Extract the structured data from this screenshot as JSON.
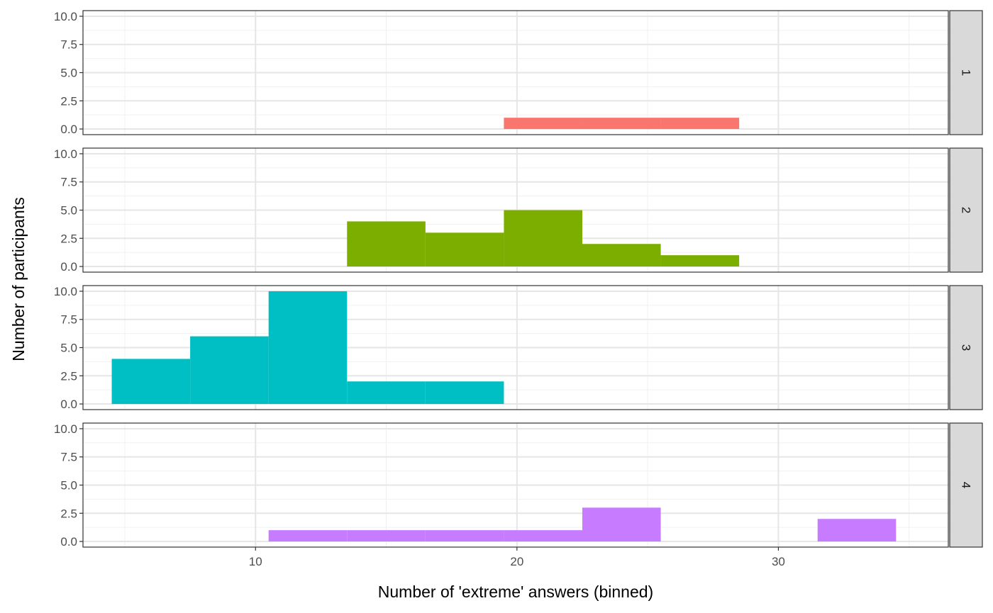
{
  "chart_data": {
    "type": "bar",
    "xlabel": "Number of 'extreme' answers (binned)",
    "ylabel": "Number of participants",
    "xlim": [
      3.4,
      36.5
    ],
    "ylim": [
      -0.5,
      10.5
    ],
    "x_ticks": [
      10,
      20,
      30
    ],
    "x_tick_labels": [
      "10",
      "20",
      "30"
    ],
    "y_ticks": [
      0,
      2.5,
      5,
      7.5,
      10
    ],
    "y_tick_labels": [
      "0.0",
      "2.5",
      "5.0",
      "7.5",
      "10.0"
    ],
    "bin_width": 3,
    "grid": true,
    "legend": "none",
    "facets": [
      {
        "label": "1",
        "color": "#F8766D",
        "bins": [
          {
            "xmin": 19.5,
            "xmax": 22.5,
            "count": 1
          },
          {
            "xmin": 22.5,
            "xmax": 25.5,
            "count": 1
          },
          {
            "xmin": 25.5,
            "xmax": 28.5,
            "count": 1
          }
        ]
      },
      {
        "label": "2",
        "color": "#7CAE00",
        "bins": [
          {
            "xmin": 13.5,
            "xmax": 16.5,
            "count": 4
          },
          {
            "xmin": 16.5,
            "xmax": 19.5,
            "count": 3
          },
          {
            "xmin": 19.5,
            "xmax": 22.5,
            "count": 5
          },
          {
            "xmin": 22.5,
            "xmax": 25.5,
            "count": 2
          },
          {
            "xmin": 25.5,
            "xmax": 28.5,
            "count": 1
          }
        ]
      },
      {
        "label": "3",
        "color": "#00BFC4",
        "bins": [
          {
            "xmin": 4.5,
            "xmax": 7.5,
            "count": 4
          },
          {
            "xmin": 7.5,
            "xmax": 10.5,
            "count": 6
          },
          {
            "xmin": 10.5,
            "xmax": 13.5,
            "count": 10
          },
          {
            "xmin": 13.5,
            "xmax": 16.5,
            "count": 2
          },
          {
            "xmin": 16.5,
            "xmax": 19.5,
            "count": 2
          }
        ]
      },
      {
        "label": "4",
        "color": "#C77CFF",
        "bins": [
          {
            "xmin": 10.5,
            "xmax": 13.5,
            "count": 1
          },
          {
            "xmin": 13.5,
            "xmax": 16.5,
            "count": 1
          },
          {
            "xmin": 16.5,
            "xmax": 19.5,
            "count": 1
          },
          {
            "xmin": 19.5,
            "xmax": 22.5,
            "count": 1
          },
          {
            "xmin": 22.5,
            "xmax": 25.5,
            "count": 3
          },
          {
            "xmin": 31.5,
            "xmax": 34.5,
            "count": 2
          }
        ]
      }
    ]
  }
}
